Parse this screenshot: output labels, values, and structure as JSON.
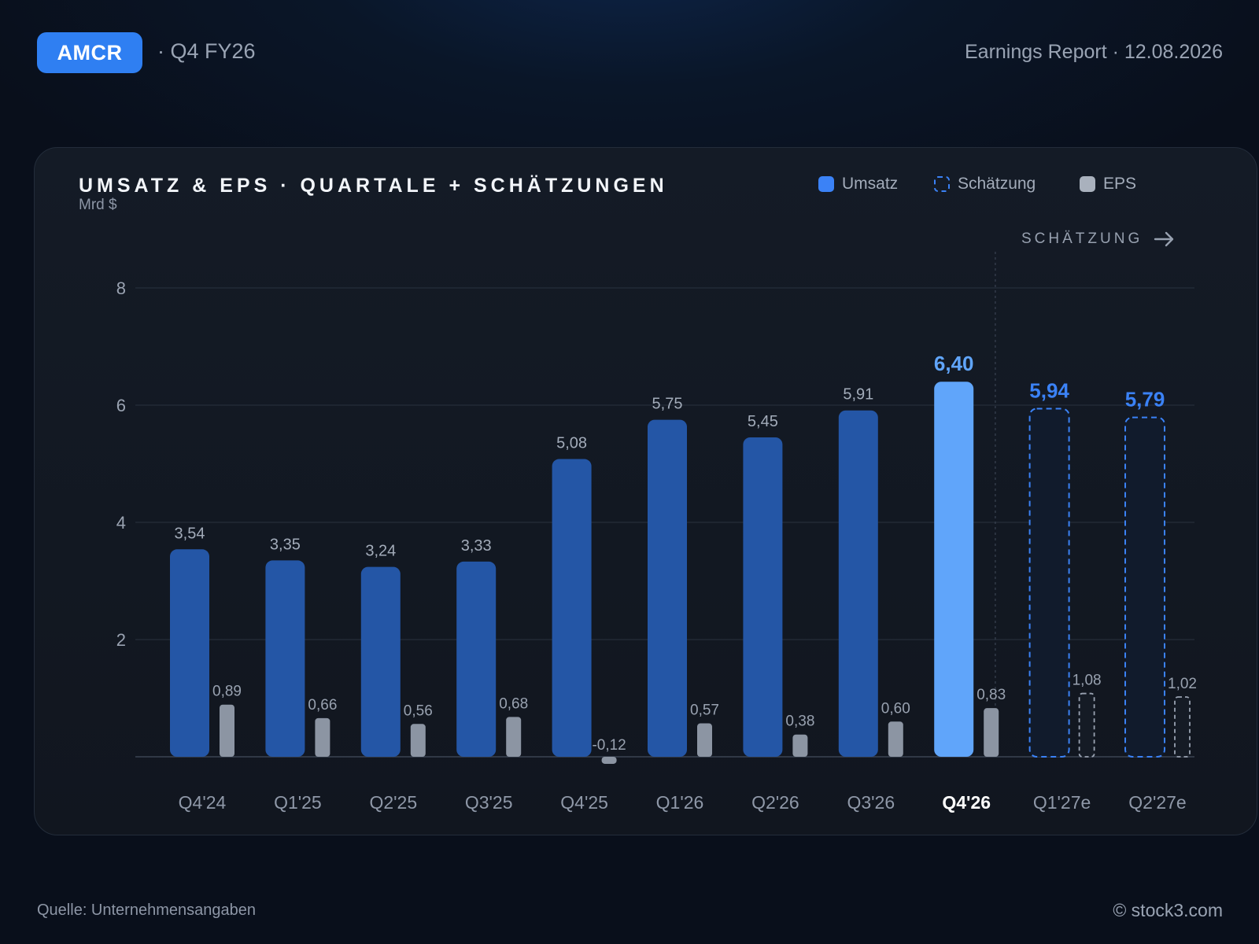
{
  "header": {
    "ticker": "AMCR",
    "quarter": "· Q4 FY26",
    "report": "Earnings Report · 12.08.2026"
  },
  "footer": {
    "source": "Quelle: Unternehmensangaben",
    "copyright": "© stock3.com"
  },
  "estimate_marker": "SCHÄTZUNG",
  "colors": {
    "revenue": "#2456a6",
    "revenue_highlight": "#60a5fa",
    "estimate": "#3b82f6",
    "eps": "#8c95a3",
    "accent": "#2f7ff2"
  },
  "chart_data": {
    "type": "bar",
    "title": "UMSATZ & EPS · QUARTALE + SCHÄTZUNGEN",
    "ylabel": "Mrd $",
    "ylim": [
      0,
      8
    ],
    "yticks": [
      2,
      4,
      6,
      8
    ],
    "grid": true,
    "legend_position": "top-right",
    "legend": [
      {
        "label": "Umsatz",
        "kind": "revenue"
      },
      {
        "label": "Schätzung",
        "kind": "estimate"
      },
      {
        "label": "EPS",
        "kind": "eps"
      }
    ],
    "categories": [
      "Q4'24",
      "Q1'25",
      "Q2'25",
      "Q3'25",
      "Q4'25",
      "Q1'26",
      "Q2'26",
      "Q3'26",
      "Q4'26",
      "Q1'27e",
      "Q2'27e"
    ],
    "highlight_index": 8,
    "estimate_from_index": 9,
    "series": [
      {
        "name": "Umsatz",
        "values": [
          3.54,
          3.35,
          3.24,
          3.33,
          5.08,
          5.75,
          5.45,
          5.91,
          6.4,
          5.94,
          5.79
        ],
        "labels": [
          "3,54",
          "3,35",
          "3,24",
          "3,33",
          "5,08",
          "5,75",
          "5,45",
          "5,91",
          "6,40",
          "5,94",
          "5,79"
        ]
      },
      {
        "name": "EPS",
        "values": [
          0.89,
          0.66,
          0.56,
          0.68,
          -0.12,
          0.57,
          0.38,
          0.6,
          0.83,
          1.08,
          1.02
        ],
        "labels": [
          "0,89",
          "0,66",
          "0,56",
          "0,68",
          "-0,12",
          "0,57",
          "0,38",
          "0,60",
          "0,83",
          "1,08",
          "1,02"
        ]
      }
    ]
  }
}
